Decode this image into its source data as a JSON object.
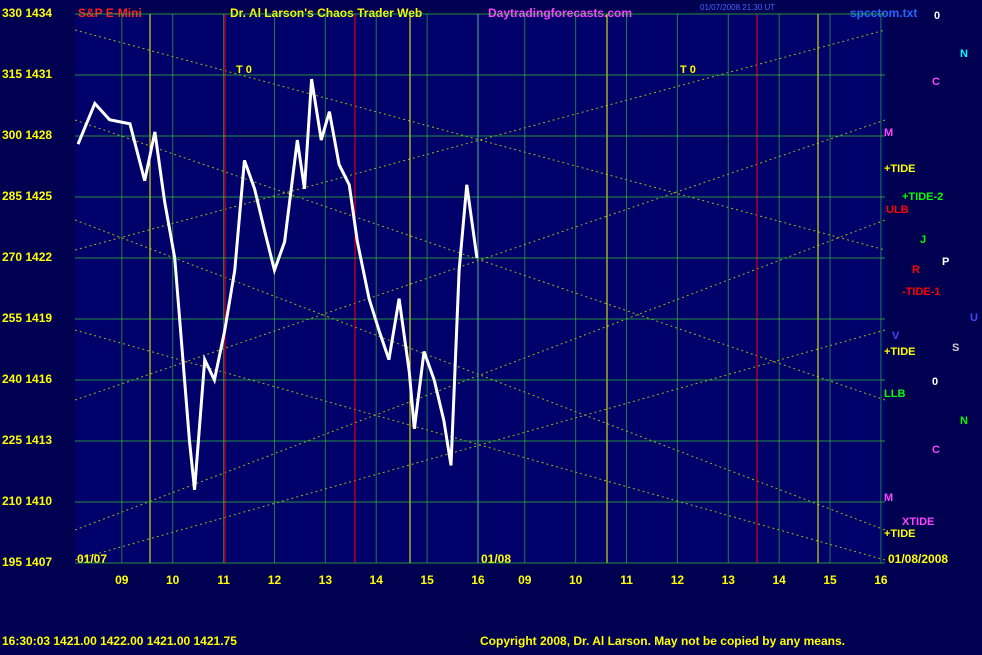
{
  "chart_data": {
    "type": "line",
    "title": "Dr. Al Larson's Chaos Trader Web",
    "symbol": "S&P E-Mini",
    "website": "Daytradingforecasts.com",
    "file": "spcctom.txt",
    "timestamp": "01/07/2008 21:30 UT",
    "status": "16:30:03  1421.00  1422.00  1421.00  1421.75",
    "copyright": "Copyright 2008, Dr. Al Larson. May not be copied by any means.",
    "dates": [
      "01/07",
      "01/08",
      "01/08/2008"
    ],
    "annotations": [
      "0",
      "N",
      "C",
      "M",
      "+TIDE",
      "+TIDE-2",
      "ULB",
      "J",
      "R",
      "P",
      "-TIDE-1",
      "U",
      "V",
      "S",
      "+TIDE",
      "0",
      "LLB",
      "N",
      "C",
      "M",
      "XTIDE",
      "+TIDE",
      "T 0",
      "T 0"
    ],
    "xlim": [
      -0.92,
      15.0
    ],
    "xticks": [
      {
        "value": 0,
        "label": "09"
      },
      {
        "value": 1,
        "label": "10"
      },
      {
        "value": 2,
        "label": "11"
      },
      {
        "value": 3,
        "label": "12"
      },
      {
        "value": 4,
        "label": "13"
      },
      {
        "value": 5,
        "label": "14"
      },
      {
        "value": 6,
        "label": "15"
      },
      {
        "value": 7,
        "label": "16"
      },
      {
        "value": 7.92,
        "label": "09"
      },
      {
        "value": 8.92,
        "label": "10"
      },
      {
        "value": 9.92,
        "label": "11"
      },
      {
        "value": 10.92,
        "label": "12"
      },
      {
        "value": 11.92,
        "label": "13"
      },
      {
        "value": 12.92,
        "label": "14"
      },
      {
        "value": 13.92,
        "label": "15"
      },
      {
        "value": 14.92,
        "label": "16"
      }
    ],
    "ylim": [
      195,
      330
    ],
    "yticks": [
      {
        "value": 195,
        "label": "195 1407"
      },
      {
        "value": 210,
        "label": "210 1410"
      },
      {
        "value": 225,
        "label": "225 1413"
      },
      {
        "value": 240,
        "label": "240 1416"
      },
      {
        "value": 255,
        "label": "255 1419"
      },
      {
        "value": 270,
        "label": "270 1422"
      },
      {
        "value": 285,
        "label": "285 1425"
      },
      {
        "value": 300,
        "label": "300 1428"
      },
      {
        "value": 315,
        "label": "315 1431"
      },
      {
        "value": 330,
        "label": "330 1434"
      }
    ],
    "grid": true,
    "series": [
      {
        "name": "S&P E-Mini",
        "color": "#ffffff",
        "x": [
          -0.86,
          -0.53,
          -0.24,
          0.16,
          0.45,
          0.65,
          0.84,
          1.04,
          1.33,
          1.43,
          1.63,
          1.82,
          2.02,
          2.22,
          2.41,
          2.61,
          2.8,
          3.0,
          3.2,
          3.45,
          3.59,
          3.73,
          3.92,
          4.08,
          4.27,
          4.47,
          4.63,
          4.86,
          5.06,
          5.25,
          5.45,
          5.65,
          5.75,
          5.94,
          6.14,
          6.33,
          6.47,
          6.63,
          6.78,
          6.98
        ],
        "values": [
          298,
          308,
          304,
          303,
          289,
          301,
          284,
          270,
          225,
          213,
          245,
          240,
          252,
          267,
          294,
          287,
          277,
          267,
          274,
          299,
          287,
          314,
          299,
          306,
          293,
          288,
          274,
          260,
          252,
          245,
          260,
          242,
          228,
          247,
          240,
          230,
          219,
          267,
          288,
          270
        ]
      }
    ]
  }
}
